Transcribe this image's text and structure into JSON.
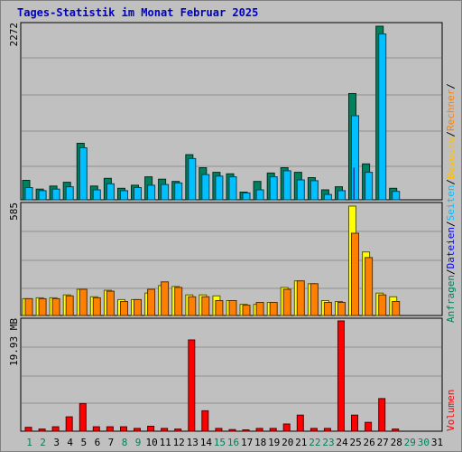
{
  "title": "Tages-Statistik im Monat Februar 2025",
  "colors": {
    "anfragen": "#00805c",
    "dateien": "#00c0ff",
    "seiten": "#00c0ff",
    "besuche": "#ffff00",
    "rechner": "#ff8000",
    "volumen": "#ff0000",
    "weekday_label": "#000000",
    "weekend_label": "#00805c"
  },
  "chart_data": [
    {
      "type": "bar",
      "panel": "top",
      "ylabel": "2272",
      "ylim": [
        0,
        2272
      ],
      "categories": [
        "1",
        "2",
        "3",
        "4",
        "5",
        "6",
        "7",
        "8",
        "9",
        "10",
        "11",
        "12",
        "13",
        "14",
        "15",
        "16",
        "17",
        "18",
        "19",
        "20",
        "21",
        "22",
        "23",
        "24",
        "25",
        "26",
        "27",
        "28",
        "29",
        "30",
        "31"
      ],
      "series": [
        {
          "name": "Anfragen",
          "values": [
            255,
            140,
            180,
            230,
            740,
            180,
            280,
            150,
            190,
            300,
            270,
            240,
            590,
            420,
            360,
            340,
            100,
            240,
            350,
            420,
            360,
            290,
            130,
            170,
            1390,
            470,
            2272,
            150,
            0,
            0,
            0
          ]
        },
        {
          "name": "Dateien",
          "values": [
            160,
            120,
            140,
            170,
            680,
            130,
            210,
            120,
            160,
            190,
            200,
            220,
            540,
            330,
            310,
            300,
            90,
            130,
            300,
            380,
            260,
            250,
            70,
            120,
            1100,
            360,
            2170,
            110,
            0,
            0,
            0
          ]
        },
        {
          "name": "Seiten",
          "values": [
            0,
            0,
            0,
            0,
            0,
            0,
            0,
            0,
            0,
            0,
            0,
            0,
            0,
            0,
            0,
            0,
            0,
            0,
            0,
            0,
            0,
            0,
            0,
            0,
            420,
            0,
            0,
            0,
            0,
            0,
            0
          ]
        }
      ]
    },
    {
      "type": "bar",
      "panel": "middle",
      "ylabel": "585",
      "ylim": [
        0,
        585
      ],
      "categories": [
        "1",
        "2",
        "3",
        "4",
        "5",
        "6",
        "7",
        "8",
        "9",
        "10",
        "11",
        "12",
        "13",
        "14",
        "15",
        "16",
        "17",
        "18",
        "19",
        "20",
        "21",
        "22",
        "23",
        "24",
        "25",
        "26",
        "27",
        "28",
        "29",
        "30",
        "31"
      ],
      "series": [
        {
          "name": "Besuche",
          "values": [
            90,
            95,
            95,
            110,
            140,
            100,
            135,
            85,
            85,
            120,
            160,
            155,
            110,
            110,
            105,
            80,
            60,
            60,
            70,
            150,
            185,
            170,
            80,
            75,
            585,
            340,
            120,
            100,
            0,
            0,
            0
          ]
        },
        {
          "name": "Rechner",
          "values": [
            90,
            90,
            90,
            105,
            140,
            95,
            130,
            75,
            85,
            140,
            180,
            150,
            100,
            100,
            80,
            80,
            55,
            70,
            70,
            140,
            185,
            170,
            70,
            70,
            440,
            310,
            110,
            75,
            0,
            0,
            0
          ]
        }
      ]
    },
    {
      "type": "bar",
      "panel": "bottom",
      "ylabel": "19.93 MB",
      "ylim": [
        0,
        19.93
      ],
      "categories": [
        "1",
        "2",
        "3",
        "4",
        "5",
        "6",
        "7",
        "8",
        "9",
        "10",
        "11",
        "12",
        "13",
        "14",
        "15",
        "16",
        "17",
        "18",
        "19",
        "20",
        "21",
        "22",
        "23",
        "24",
        "25",
        "26",
        "27",
        "28",
        "29",
        "30",
        "31"
      ],
      "series": [
        {
          "name": "Volumen",
          "values": [
            0.7,
            0.4,
            0.8,
            2.6,
            5.0,
            0.8,
            0.8,
            0.8,
            0.5,
            0.9,
            0.5,
            0.4,
            16.5,
            3.7,
            0.5,
            0.3,
            0.2,
            0.5,
            0.5,
            1.3,
            2.9,
            0.5,
            0.5,
            19.93,
            2.9,
            1.6,
            5.9,
            0.4,
            0,
            0,
            0
          ]
        }
      ]
    }
  ],
  "x_axis": {
    "labels": [
      "1",
      "2",
      "3",
      "4",
      "5",
      "6",
      "7",
      "8",
      "9",
      "10",
      "11",
      "12",
      "13",
      "14",
      "15",
      "16",
      "17",
      "18",
      "19",
      "20",
      "21",
      "22",
      "23",
      "24",
      "25",
      "26",
      "27",
      "28",
      "29",
      "30",
      "31"
    ],
    "weekend": [
      "1",
      "2",
      "8",
      "9",
      "15",
      "16",
      "22",
      "23",
      "29",
      "30"
    ]
  },
  "legend_right_top": [
    {
      "text": "Anfragen",
      "color": "#00805c"
    },
    {
      "text": "/",
      "color": "#000000"
    },
    {
      "text": "Dateien",
      "color": "#0000ff"
    },
    {
      "text": "/",
      "color": "#000000"
    },
    {
      "text": "Seiten",
      "color": "#00c0ff"
    },
    {
      "text": "/",
      "color": "#000000"
    },
    {
      "text": "Besuche",
      "color": "#ffc000"
    },
    {
      "text": "/",
      "color": "#000000"
    },
    {
      "text": "Rechner",
      "color": "#ff8000"
    },
    {
      "text": "/",
      "color": "#000000"
    }
  ],
  "legend_right_bottom": [
    {
      "text": "Volumen",
      "color": "#ff0000"
    }
  ]
}
